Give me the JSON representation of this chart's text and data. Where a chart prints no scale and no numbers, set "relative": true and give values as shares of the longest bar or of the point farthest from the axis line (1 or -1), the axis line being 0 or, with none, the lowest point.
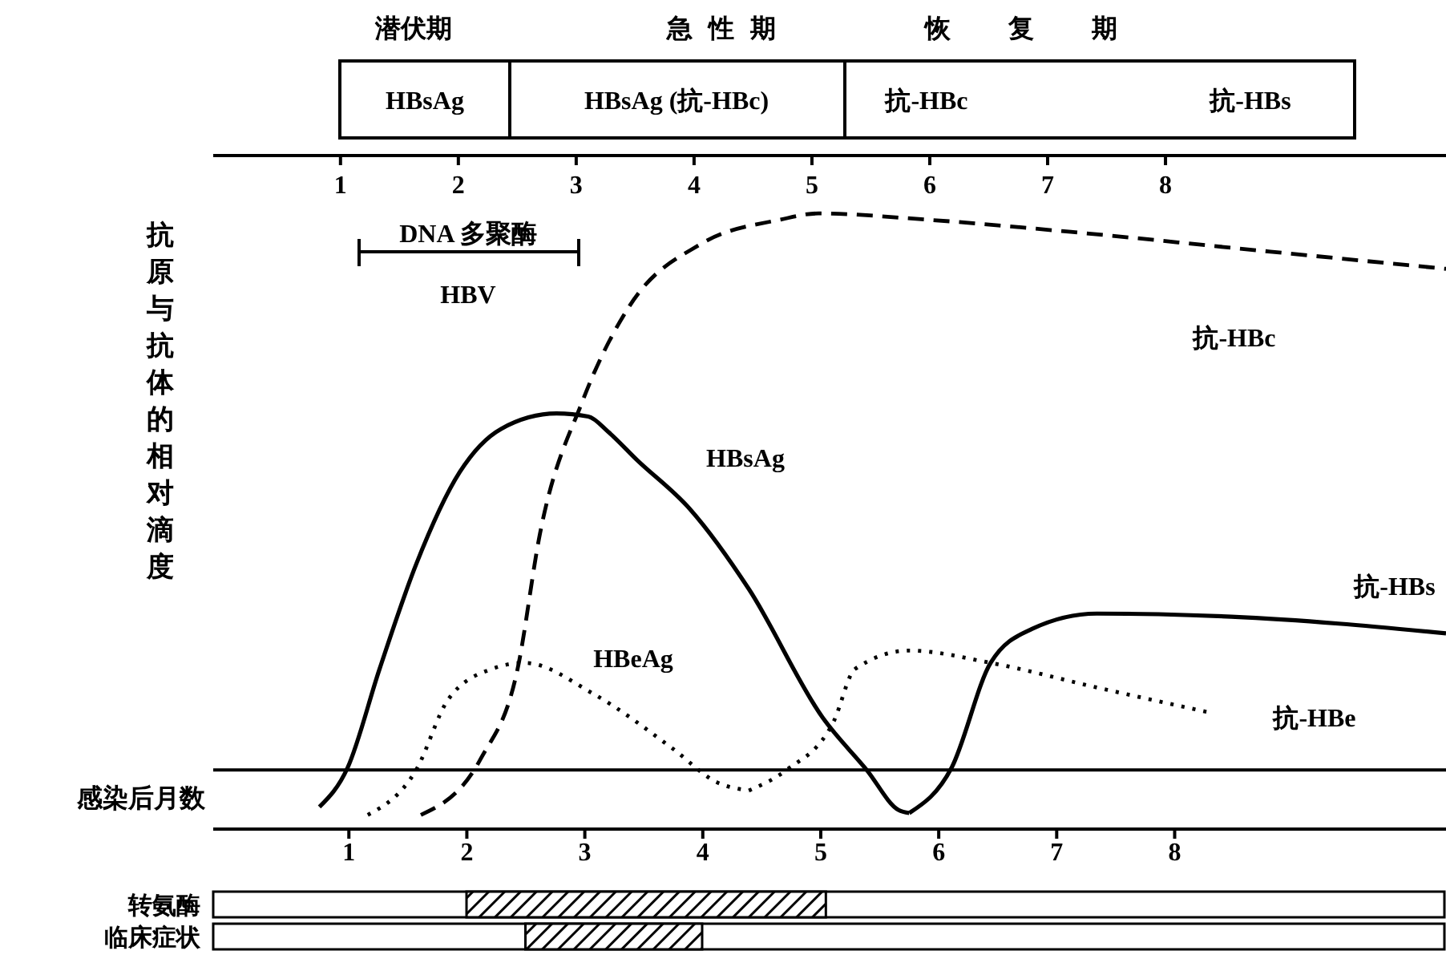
{
  "chart_data": [
    {
      "type": "line",
      "xlabel": "感染后月数",
      "ylabel": "抗原与抗体的相对滴度",
      "relative": true,
      "xlim": [
        -0.15,
        10.3
      ],
      "xticks": [
        1,
        2,
        3,
        4,
        5,
        6,
        7,
        8
      ],
      "x2lim": [
        -0.08,
        10.38
      ],
      "x2ticks": [
        1,
        2,
        3,
        4,
        5,
        6,
        7,
        8
      ],
      "marker": "none",
      "ref_lines": [
        {
          "axis": "y",
          "value": 0.096
        }
      ],
      "annotations": [
        "潜伏期",
        "急性期",
        "恢复期",
        "HBsAg",
        "HBsAg (抗-HBc)",
        "抗-HBc",
        "抗-HBs",
        "DNA 多聚酶",
        "HBV"
      ],
      "series": [
        {
          "name": "HBsAg",
          "color": "#000000",
          "line_style": "solid",
          "x": [
            0.75,
            0.99,
            1.26,
            1.57,
            1.94,
            2.29,
            2.76,
            3.03,
            3.2,
            3.44,
            3.89,
            4.39,
            5.02,
            5.39,
            5.66,
            5.75
          ],
          "values": [
            0.036,
            0.1,
            0.26,
            0.43,
            0.58,
            0.65,
            0.675,
            0.67,
            0.645,
            0.6,
            0.52,
            0.39,
            0.18,
            0.096,
            0.031,
            0.026
          ]
        },
        {
          "name": "抗-HBs",
          "color": "#000000",
          "line_style": "solid",
          "x": [
            5.75,
            6.11,
            6.44,
            6.79,
            7.34,
            8.48,
            10.3
          ],
          "values": [
            0.026,
            0.1,
            0.27,
            0.325,
            0.35,
            0.345,
            0.318
          ]
        },
        {
          "name": "抗-HBc",
          "color": "#000000",
          "line_style": "dashed",
          "x": [
            1.61,
            2.12,
            2.43,
            2.62,
            2.98,
            3.38,
            3.98,
            4.66,
            4.98,
            5.89,
            7.12,
            8.7,
            10.3
          ],
          "values": [
            0.023,
            0.115,
            0.26,
            0.48,
            0.695,
            0.85,
            0.95,
            0.99,
            1.0,
            0.99,
            0.97,
            0.94,
            0.91
          ]
        },
        {
          "name": "HBeAg",
          "color": "#000000",
          "line_style": "dotted",
          "x": [
            1.16,
            1.57,
            1.84,
            2.21,
            2.49,
            3.07,
            3.75,
            4.12,
            4.39
          ],
          "values": [
            0.023,
            0.096,
            0.21,
            0.26,
            0.27,
            0.22,
            0.13,
            0.076,
            0.0625
          ]
        },
        {
          "name": "抗-HBe",
          "color": "#000000",
          "line_style": "dotted",
          "x": [
            4.39,
            4.71,
            5.11,
            5.29,
            5.75,
            6.44,
            7.34,
            8.28
          ],
          "values": [
            0.0625,
            0.096,
            0.175,
            0.26,
            0.29,
            0.27,
            0.23,
            0.19
          ]
        }
      ]
    },
    {
      "type": "bar",
      "orientation": "horizontal",
      "categories": [
        "转氨酶",
        "临床症状"
      ],
      "base": [
        2.0,
        2.5
      ],
      "values": [
        3.05,
        1.5
      ],
      "color": "#000000",
      "xlim": [
        -0.15,
        10.3
      ],
      "tick_labels": "y"
    }
  ]
}
